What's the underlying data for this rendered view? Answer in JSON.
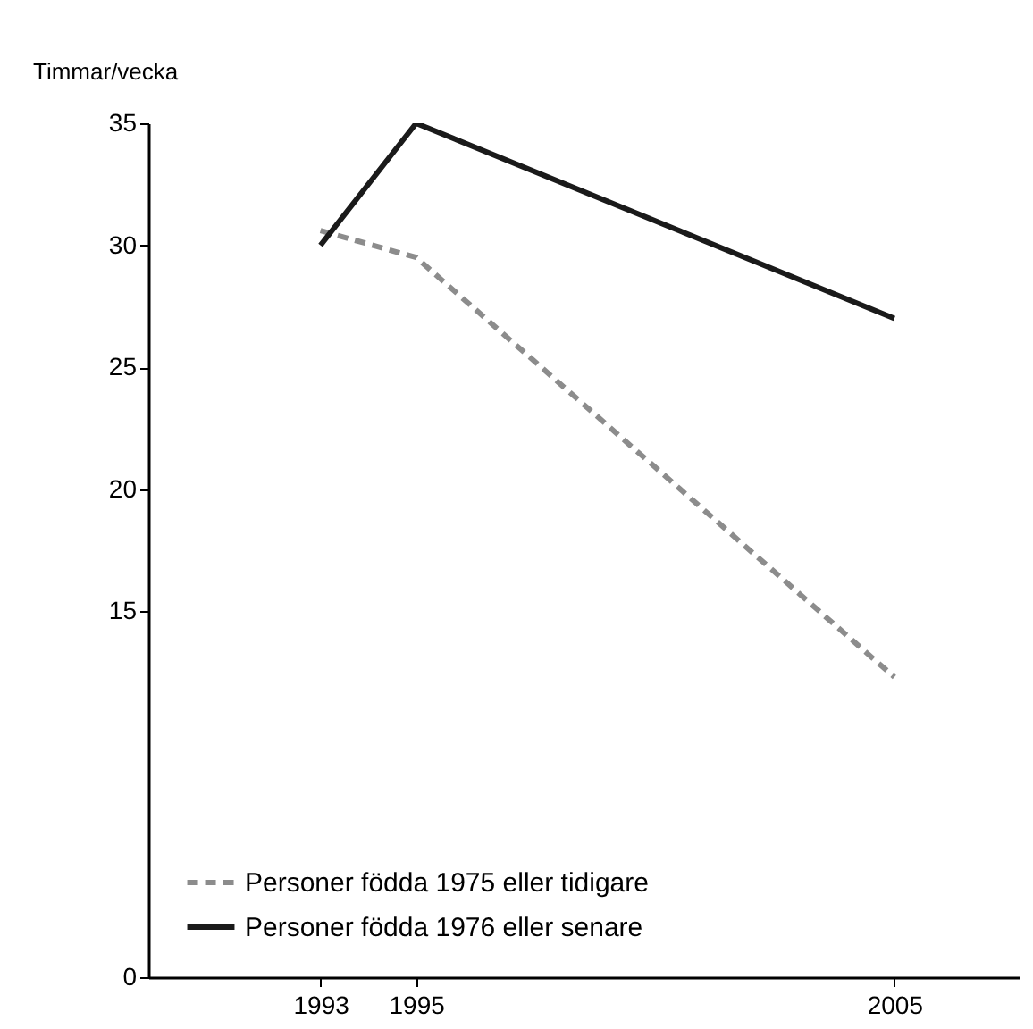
{
  "chart_data": {
    "type": "line",
    "ylabel": "Timmar/vecka",
    "x": [
      1993,
      1995,
      2005
    ],
    "series": [
      {
        "name": "Personer födda 1975 eller tidigare",
        "color": "#8c8c8c",
        "line_style": "dashed",
        "values": [
          30.6,
          29.5,
          12.3
        ]
      },
      {
        "name": "Personer födda 1976 eller senare",
        "color": "#1a1a1a",
        "line_style": "solid",
        "values": [
          30,
          35,
          27
        ]
      }
    ],
    "xlim": [
      1989.4,
      2007.6
    ],
    "xticks": [
      1993,
      1995,
      2005
    ],
    "ylim": [
      0,
      35
    ],
    "yticks": [
      0,
      15,
      20,
      25,
      30,
      35
    ],
    "grid": false,
    "legend": "bottom left",
    "marker": "none"
  }
}
